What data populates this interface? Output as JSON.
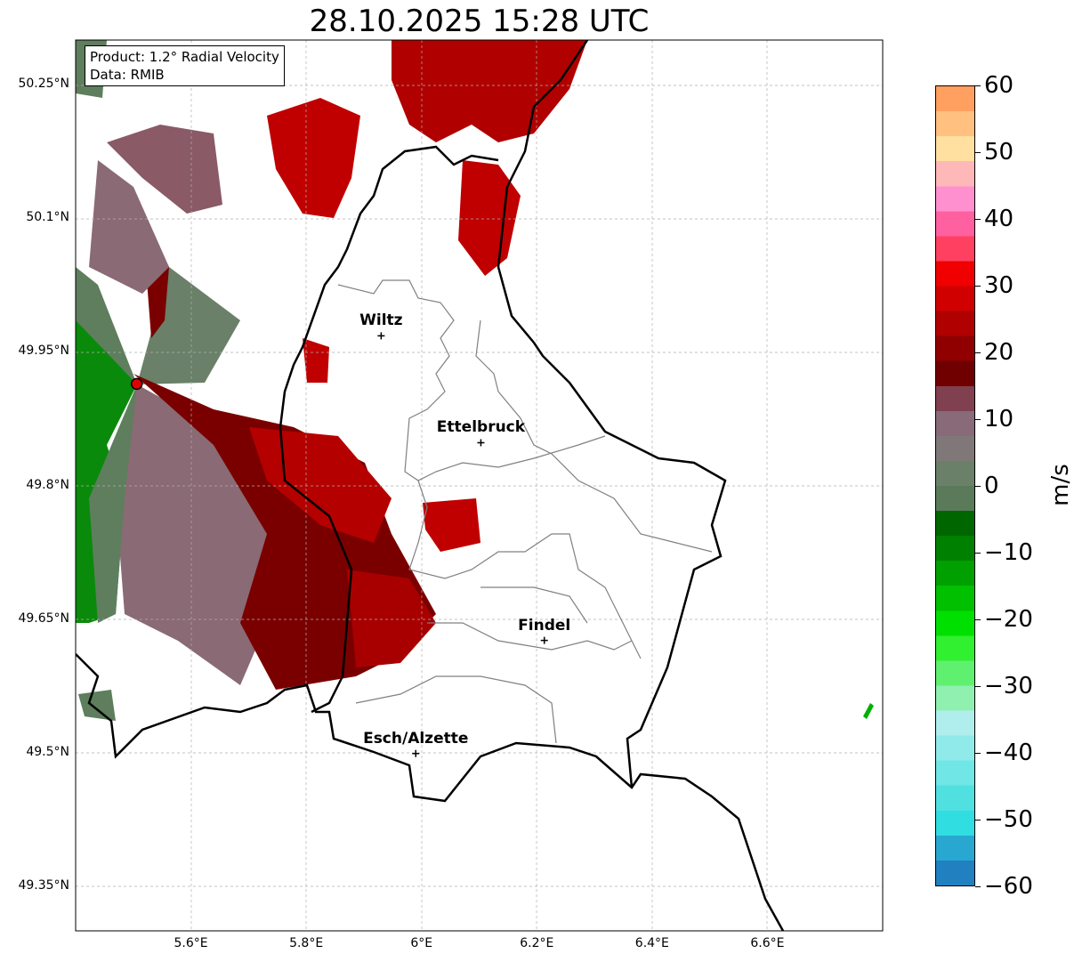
{
  "title": "28.10.2025 15:28 UTC",
  "infobox": {
    "line1": "Product: 1.2° Radial Velocity",
    "line2": "Data: RMIB"
  },
  "axes": {
    "lat_ticks": [
      {
        "v": 50.25,
        "label": "50.25°N"
      },
      {
        "v": 50.1,
        "label": "50.1°N"
      },
      {
        "v": 49.95,
        "label": "49.95°N"
      },
      {
        "v": 49.8,
        "label": "49.8°N"
      },
      {
        "v": 49.65,
        "label": "49.65°N"
      },
      {
        "v": 49.5,
        "label": "49.5°N"
      },
      {
        "v": 49.35,
        "label": "49.35°N"
      }
    ],
    "lon_ticks": [
      {
        "v": 5.6,
        "label": "5.6°E"
      },
      {
        "v": 5.8,
        "label": "5.8°E"
      },
      {
        "v": 6.0,
        "label": "6°E"
      },
      {
        "v": 6.2,
        "label": "6.2°E"
      },
      {
        "v": 6.4,
        "label": "6.4°E"
      },
      {
        "v": 6.6,
        "label": "6.6°E"
      }
    ],
    "lon_range": [
      5.4,
      6.8
    ],
    "lat_range": [
      49.3,
      50.3
    ]
  },
  "cities": [
    {
      "name": "Wiltz",
      "lon": 5.93,
      "lat": 49.968
    },
    {
      "name": "Ettelbruck",
      "lon": 6.103,
      "lat": 49.848
    },
    {
      "name": "Findel",
      "lon": 6.213,
      "lat": 49.626
    },
    {
      "name": "Esch/Alzette",
      "lon": 5.99,
      "lat": 49.499
    }
  ],
  "radar_site": {
    "lon": 5.506,
    "lat": 49.914
  },
  "colorbar": {
    "unit": "m/s",
    "range": [
      -60,
      60
    ],
    "ticks": [
      {
        "v": 60,
        "label": "60"
      },
      {
        "v": 50,
        "label": "50"
      },
      {
        "v": 40,
        "label": "40"
      },
      {
        "v": 30,
        "label": "30"
      },
      {
        "v": 20,
        "label": "20"
      },
      {
        "v": 10,
        "label": "10"
      },
      {
        "v": 0,
        "label": "0"
      },
      {
        "v": -10,
        "label": "−10"
      },
      {
        "v": -20,
        "label": "−20"
      },
      {
        "v": -30,
        "label": "−30"
      },
      {
        "v": -40,
        "label": "−40"
      },
      {
        "v": -50,
        "label": "−50"
      },
      {
        "v": -60,
        "label": "−60"
      }
    ],
    "colors": [
      "#2080c0",
      "#28a8d0",
      "#30dde0",
      "#50e0e0",
      "#70e6e6",
      "#90eaea",
      "#b0eeee",
      "#90f0b0",
      "#60f070",
      "#30f030",
      "#00e000",
      "#00c000",
      "#00a000",
      "#008000",
      "#006600",
      "#5a7a5a",
      "#6a8068",
      "#807878",
      "#886a78",
      "#804050",
      "#700000",
      "#900000",
      "#b00000",
      "#d00000",
      "#f00000",
      "#ff4060",
      "#ff60a0",
      "#ff90d0",
      "#ffb8b8",
      "#ffe0a0",
      "#ffc080",
      "#ffa060"
    ]
  },
  "colors": {
    "dark_red": "#7a0000",
    "red": "#c00000",
    "mauve": "#8a6670",
    "green": "#007a00",
    "greygreen": "#5e7e5e"
  }
}
